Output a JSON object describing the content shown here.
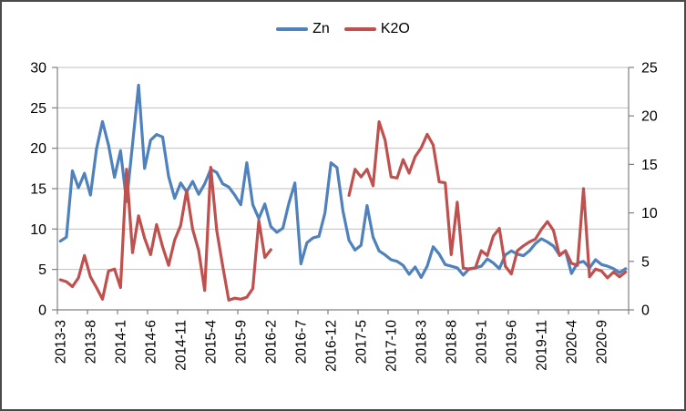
{
  "chart_data": {
    "type": "line",
    "title": "",
    "legend_position": "top",
    "grid": true,
    "categories": [
      "2013-3",
      "2013-4",
      "2013-5",
      "2013-6",
      "2013-7",
      "2013-8",
      "2013-9",
      "2013-10",
      "2013-11",
      "2013-12",
      "2014-1",
      "2014-2",
      "2014-3",
      "2014-4",
      "2014-5",
      "2014-6",
      "2014-7",
      "2014-8",
      "2014-9",
      "2014-10",
      "2014-11",
      "2014-12",
      "2015-1",
      "2015-2",
      "2015-3",
      "2015-4",
      "2015-5",
      "2015-6",
      "2015-7",
      "2015-8",
      "2015-9",
      "2015-10",
      "2015-11",
      "2015-12",
      "2016-1",
      "2016-2",
      "2016-3",
      "2016-4",
      "2016-5",
      "2016-6",
      "2016-7",
      "2016-8",
      "2016-9",
      "2016-10",
      "2016-11",
      "2016-12",
      "2017-1",
      "2017-2",
      "2017-3",
      "2017-4",
      "2017-5",
      "2017-6",
      "2017-7",
      "2017-8",
      "2017-9",
      "2017-10",
      "2017-11",
      "2017-12",
      "2018-1",
      "2018-2",
      "2018-3",
      "2018-4",
      "2018-5",
      "2018-6",
      "2018-7",
      "2018-8",
      "2018-9",
      "2018-10",
      "2018-11",
      "2018-12",
      "2019-1",
      "2019-2",
      "2019-3",
      "2019-4",
      "2019-5",
      "2019-6",
      "2019-7",
      "2019-8",
      "2019-9",
      "2019-10",
      "2019-11",
      "2019-12",
      "2020-1",
      "2020-2",
      "2020-3",
      "2020-4",
      "2020-5",
      "2020-6",
      "2020-7",
      "2020-8",
      "2020-9",
      "2020-10",
      "2020-11",
      "2020-12",
      "2021-1"
    ],
    "x_tick_label_every": 5,
    "x_tick_labels_shown": [
      "2013-3",
      "2013-8",
      "2014-1",
      "2014-6",
      "2014-11",
      "2015-4",
      "2015-9",
      "2016-2",
      "2016-7",
      "2016-12",
      "2017-5",
      "2017-10",
      "2018-3",
      "2018-8",
      "2019-1",
      "2019-6",
      "2019-11",
      "2020-4",
      "2020-9"
    ],
    "left_axis": {
      "min": 0,
      "max": 30,
      "ticks": [
        0,
        5,
        10,
        15,
        20,
        25,
        30
      ]
    },
    "right_axis": {
      "min": 0,
      "max": 25,
      "ticks": [
        0,
        5,
        10,
        15,
        20,
        25
      ]
    },
    "colors": {
      "grid": "#bfbfbf",
      "axis": "#808080",
      "text": "#000000"
    },
    "series": [
      {
        "name": "Zn",
        "axis": "left",
        "color": "#4F81BD",
        "values": [
          8.5,
          9.0,
          17.2,
          15.1,
          16.9,
          14.2,
          19.9,
          23.3,
          20.4,
          16.4,
          19.7,
          13.4,
          20.5,
          27.8,
          17.5,
          21.0,
          21.7,
          21.4,
          16.5,
          13.8,
          15.7,
          14.6,
          15.9,
          14.3,
          15.6,
          17.4,
          17.0,
          15.6,
          15.2,
          14.2,
          13.0,
          18.2,
          13.0,
          11.3,
          13.1,
          10.3,
          9.6,
          10.1,
          13.2,
          15.7,
          5.7,
          8.3,
          8.9,
          9.1,
          12.0,
          18.2,
          17.6,
          12.2,
          8.6,
          7.4,
          8.0,
          12.9,
          9.0,
          7.3,
          6.8,
          6.2,
          6.0,
          5.5,
          4.4,
          5.3,
          4.0,
          5.4,
          7.8,
          6.9,
          5.6,
          5.4,
          5.2,
          4.3,
          5.1,
          5.2,
          5.4,
          6.3,
          5.8,
          5.1,
          6.8,
          7.3,
          6.9,
          6.7,
          7.3,
          8.2,
          8.8,
          8.4,
          7.9,
          6.8,
          7.3,
          4.5,
          5.8,
          6.0,
          5.2,
          6.2,
          5.6,
          5.4,
          5.1,
          4.6,
          5.1
        ]
      },
      {
        "name": "K2O",
        "axis": "right",
        "color": "#C0504D",
        "values": [
          3.1,
          2.9,
          2.4,
          3.3,
          5.6,
          3.4,
          2.3,
          1.1,
          4.0,
          4.2,
          2.3,
          14.5,
          5.9,
          9.7,
          7.4,
          5.7,
          8.8,
          6.5,
          4.6,
          7.2,
          8.7,
          12.3,
          8.3,
          6.1,
          2.0,
          14.7,
          8.2,
          4.5,
          1.0,
          1.2,
          1.1,
          1.3,
          2.2,
          9.2,
          5.4,
          6.2,
          null,
          null,
          null,
          null,
          null,
          null,
          null,
          null,
          null,
          null,
          null,
          null,
          11.8,
          14.5,
          13.7,
          14.5,
          12.8,
          19.4,
          17.5,
          13.7,
          13.6,
          15.5,
          14.1,
          15.8,
          16.7,
          18.1,
          17.0,
          13.2,
          13.1,
          5.7,
          11.1,
          4.3,
          4.2,
          4.3,
          6.1,
          5.6,
          7.6,
          8.4,
          4.5,
          3.7,
          6.1,
          6.6,
          7.0,
          7.3,
          8.3,
          9.1,
          8.2,
          5.6,
          6.1,
          4.8,
          4.6,
          12.5,
          3.4,
          4.2,
          4.0,
          3.3,
          3.9,
          3.4,
          3.9
        ]
      }
    ]
  }
}
